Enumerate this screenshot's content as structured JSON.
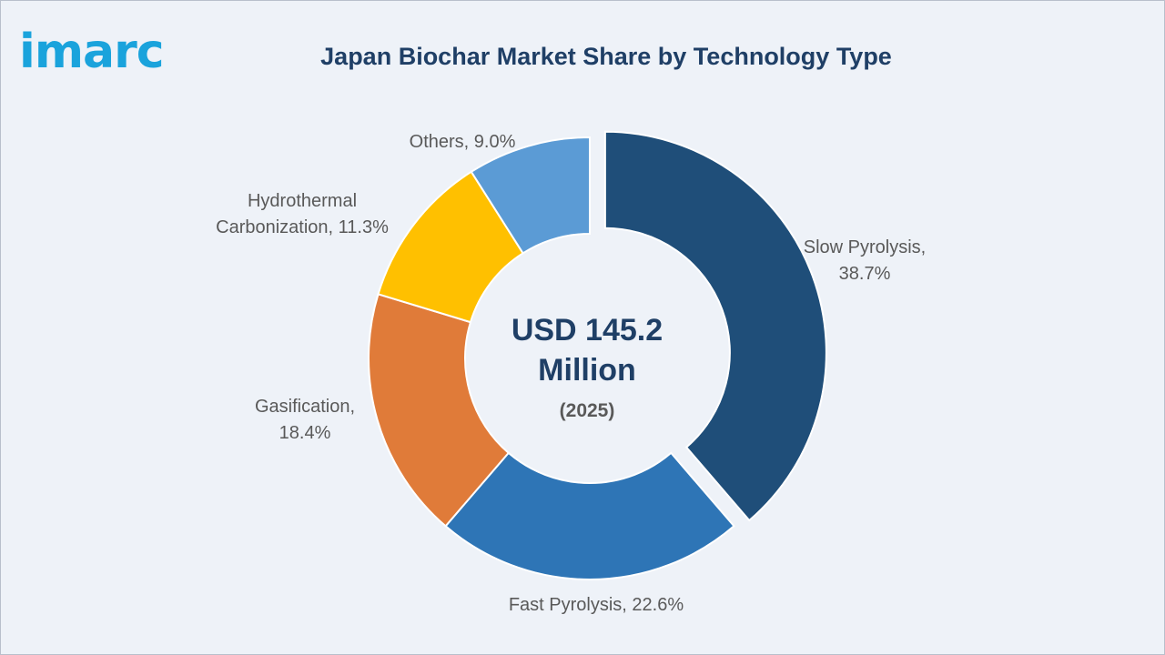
{
  "brand": {
    "logo_text": "imarc",
    "logo_color": "#1aa3dc"
  },
  "chart_data": {
    "type": "pie",
    "variant": "donut",
    "title": "Japan Biochar Market Share by Technology Type",
    "center_text": {
      "line1": "USD 145.2",
      "line2": "Million",
      "line3": "(2025)"
    },
    "unit": "%",
    "slices": [
      {
        "name": "Slow Pyrolysis",
        "value": 38.7,
        "color": "#1f4e79",
        "label_lines": [
          "Slow Pyrolysis,",
          "38.7%"
        ],
        "exploded": true
      },
      {
        "name": "Fast Pyrolysis",
        "value": 22.6,
        "color": "#2e75b6",
        "label_lines": [
          "Fast Pyrolysis, 22.6%"
        ],
        "exploded": false
      },
      {
        "name": "Gasification",
        "value": 18.4,
        "color": "#e07b39",
        "label_lines": [
          "Gasification,",
          "18.4%"
        ],
        "exploded": false
      },
      {
        "name": "Hydrothermal Carbonization",
        "value": 11.3,
        "color": "#ffc000",
        "label_lines": [
          "Hydrothermal",
          "Carbonization, 11.3%"
        ],
        "exploded": false
      },
      {
        "name": "Others",
        "value": 9.0,
        "color": "#5b9bd5",
        "label_lines": [
          "Others, 9.0%"
        ],
        "exploded": false
      }
    ],
    "legend": "none"
  }
}
